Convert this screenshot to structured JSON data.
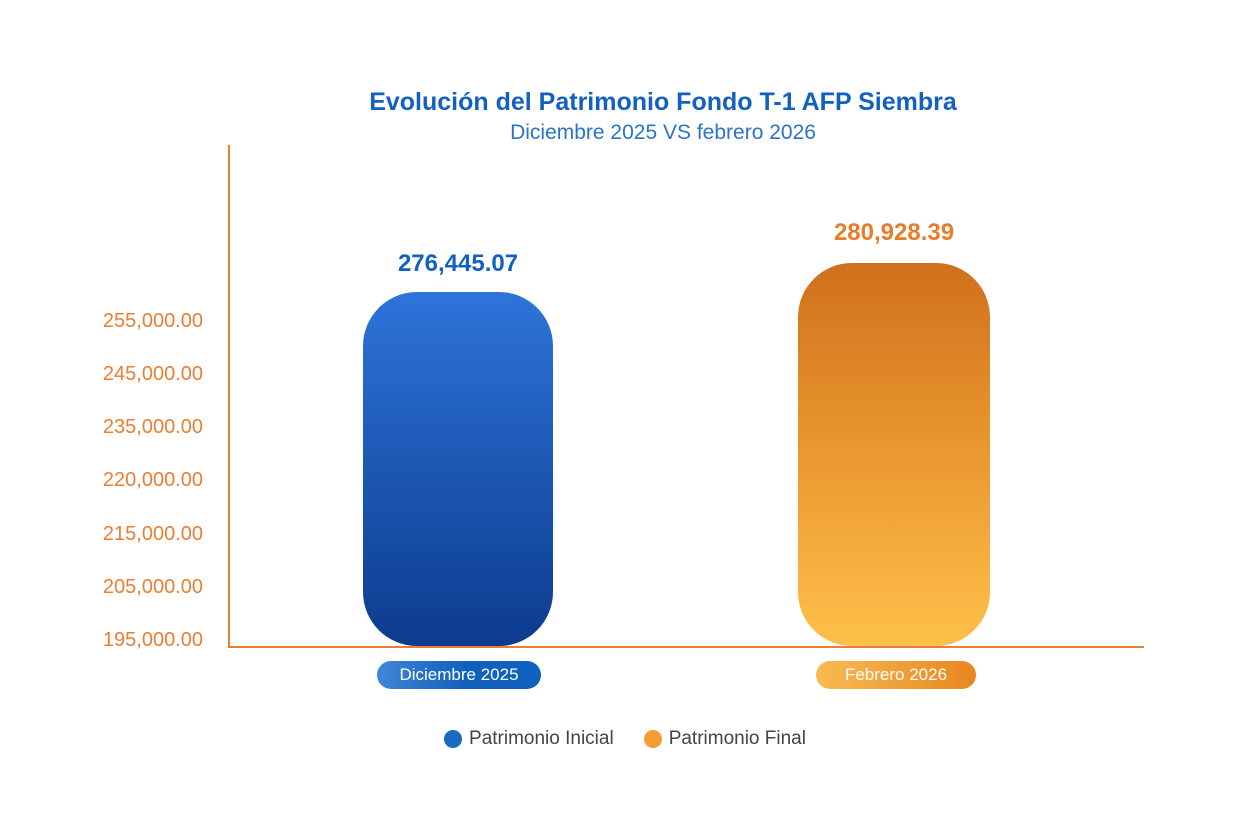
{
  "chart_data": {
    "type": "bar",
    "title": "Evolución del Patrimonio Fondo T-1 AFP Siembra",
    "subtitle": "Diciembre 2025 VS febrero 2026",
    "categories": [
      "Diciembre 2025",
      "Febrero 2026"
    ],
    "series": [
      {
        "name": "Patrimonio Inicial",
        "category": "Diciembre 2025",
        "value": 276445.07,
        "value_label": "276,445.07"
      },
      {
        "name": "Patrimonio Final",
        "category": "Febrero 2026",
        "value": 280928.39,
        "value_label": "280,928.39"
      }
    ],
    "yticks": [
      "255,000.00",
      "245,000.00",
      "235,000.00",
      "220,000.00",
      "215,000.00",
      "205,000.00",
      "195,000.00"
    ],
    "ytick_values": [
      255000,
      245000,
      235000,
      220000,
      215000,
      205000,
      195000
    ],
    "xlabel": "",
    "ylabel": "",
    "grid": false,
    "legend": [
      "Patrimonio Inicial",
      "Patrimonio Final"
    ],
    "legend_position": "bottom"
  },
  "colors": {
    "title-blue": "#1261c1",
    "subtitle-blue": "#2a74c9",
    "axis-orange": "#ed7d31",
    "bar-blue-top": "#2e74d9",
    "bar-blue-bottom": "#0c3b8e",
    "bar-orange-top": "#d0701d",
    "bar-orange-bottom": "#fec04a",
    "value-blue": "#1261c1",
    "value-orange": "#e87c28",
    "pill-blue": "#1060bd",
    "pill-orange-left": "#f9bb52",
    "pill-orange-right": "#e8861f",
    "legend-dot-blue": "#1b69c3",
    "legend-dot-orange": "#f59d35",
    "legend-text": "#444444"
  }
}
